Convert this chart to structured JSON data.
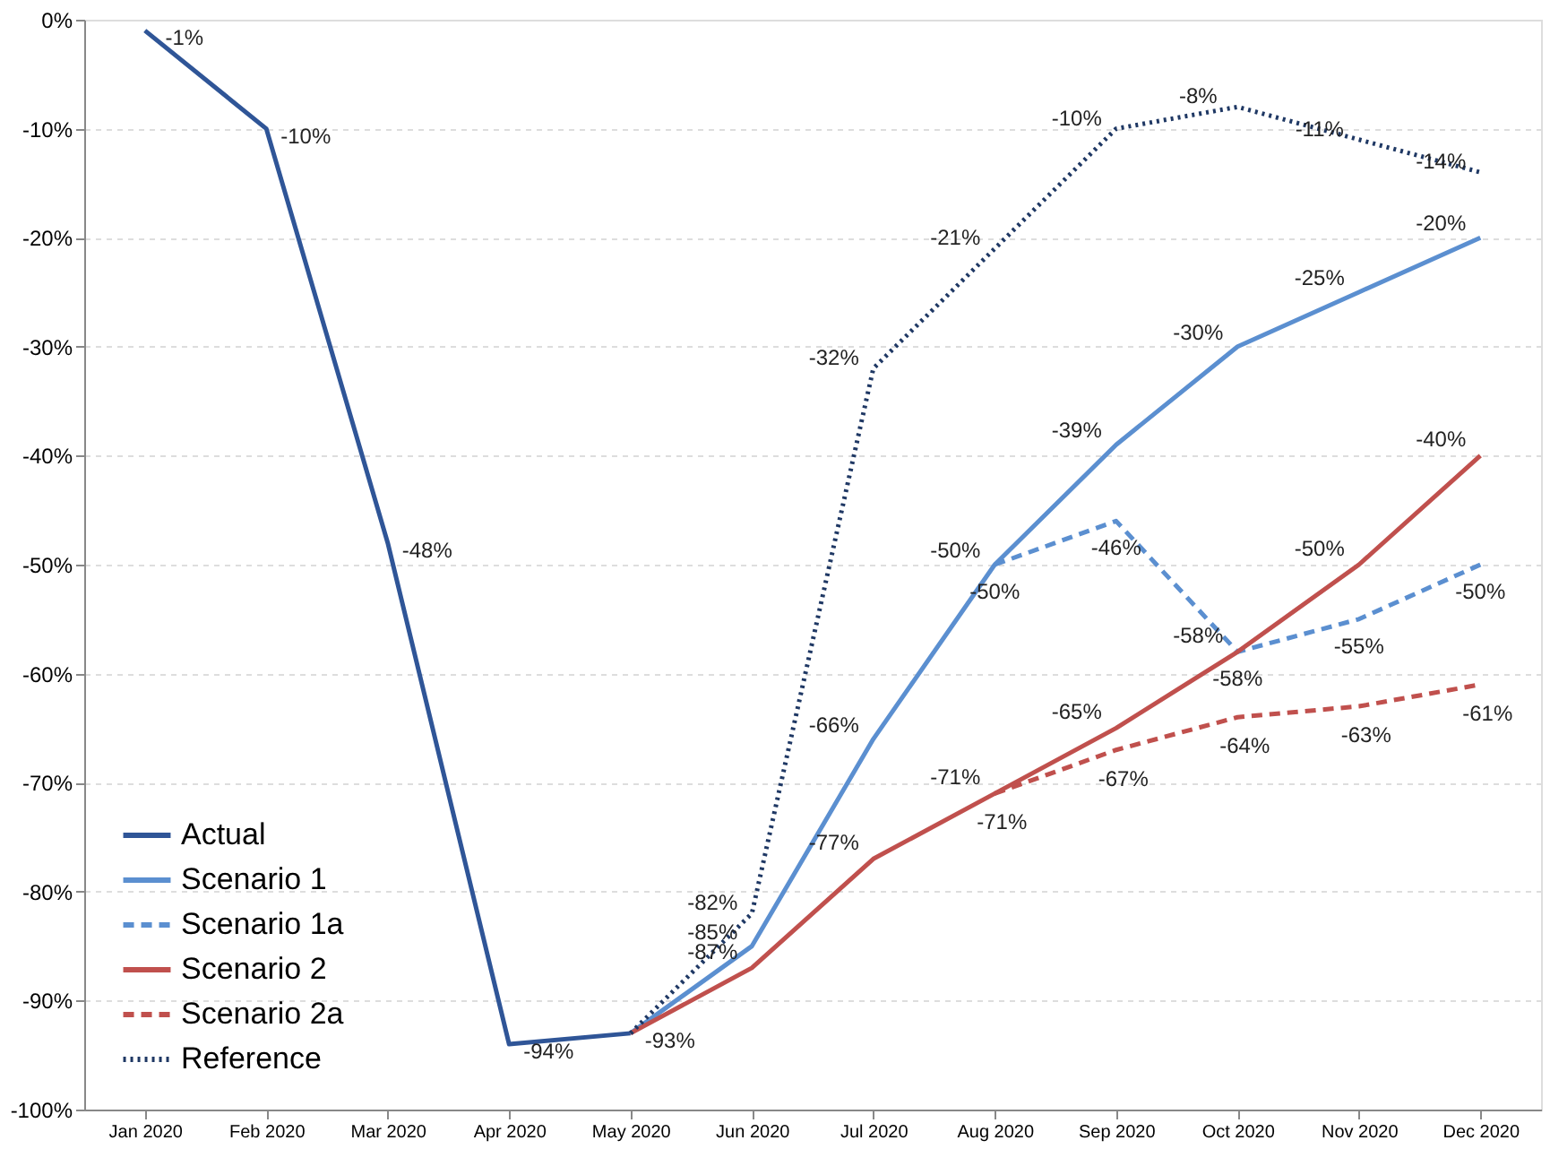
{
  "chart_data": {
    "type": "line",
    "categories": [
      "Jan 2020",
      "Feb 2020",
      "Mar 2020",
      "Apr 2020",
      "May 2020",
      "Jun 2020",
      "Jul 2020",
      "Aug 2020",
      "Sep 2020",
      "Oct 2020",
      "Nov 2020",
      "Dec 2020"
    ],
    "series": [
      {
        "name": "Actual",
        "color": "#2f5597",
        "line_style": "solid",
        "values": [
          -1,
          -10,
          -48,
          -94,
          -93,
          null,
          null,
          null,
          null,
          null,
          null,
          null
        ],
        "value_labels": [
          "-1%",
          "-10%",
          "-48%",
          "-94%",
          "-93%",
          null,
          null,
          null,
          null,
          null,
          null,
          null
        ]
      },
      {
        "name": "Scenario 1",
        "color": "#5b8fd0",
        "line_style": "solid",
        "values": [
          null,
          null,
          null,
          null,
          -93,
          -85,
          -66,
          -50,
          -39,
          -30,
          -25,
          -20
        ],
        "value_labels": [
          null,
          null,
          null,
          null,
          null,
          "-85%",
          "-66%",
          "-50%",
          "-39%",
          "-30%",
          "-25%",
          "-20%"
        ]
      },
      {
        "name": "Scenario 1a",
        "color": "#5b8fd0",
        "line_style": "dashed",
        "values": [
          null,
          null,
          null,
          null,
          null,
          null,
          null,
          -50,
          -46,
          -58,
          -55,
          -50
        ],
        "value_labels": [
          null,
          null,
          null,
          null,
          null,
          null,
          null,
          "-50%",
          "-46%",
          "-58%",
          "-55%",
          "-50%"
        ]
      },
      {
        "name": "Scenario 2",
        "color": "#c0504d",
        "line_style": "solid",
        "values": [
          null,
          null,
          null,
          null,
          -93,
          -87,
          -77,
          -71,
          -65,
          -58,
          -50,
          -40
        ],
        "value_labels": [
          null,
          null,
          null,
          null,
          null,
          "-87%",
          "-77%",
          "-71%",
          "-65%",
          "-58%",
          "-50%",
          "-40%"
        ]
      },
      {
        "name": "Scenario 2a",
        "color": "#c0504d",
        "line_style": "dashed",
        "values": [
          null,
          null,
          null,
          null,
          null,
          null,
          null,
          -71,
          -67,
          -64,
          -63,
          -61
        ],
        "value_labels": [
          null,
          null,
          null,
          null,
          null,
          null,
          null,
          "-71%",
          "-67%",
          "-64%",
          "-63%",
          "-61%"
        ]
      },
      {
        "name": "Reference",
        "color": "#1f3864",
        "line_style": "dotted",
        "values": [
          null,
          null,
          null,
          null,
          -93,
          -82,
          -32,
          -21,
          -10,
          -8,
          -11,
          -14
        ],
        "value_labels": [
          null,
          null,
          null,
          null,
          null,
          "-82%",
          "-32%",
          "-21%",
          "-10%",
          "-8%",
          "-11%",
          "-14%"
        ]
      }
    ],
    "ylim": [
      -100,
      0
    ],
    "yticks": [
      {
        "value": 0,
        "label": "0%"
      },
      {
        "value": -10,
        "label": "-10%"
      },
      {
        "value": -20,
        "label": "-20%"
      },
      {
        "value": -30,
        "label": "-30%"
      },
      {
        "value": -40,
        "label": "-40%"
      },
      {
        "value": -50,
        "label": "-50%"
      },
      {
        "value": -60,
        "label": "-60%"
      },
      {
        "value": -70,
        "label": "-70%"
      },
      {
        "value": -80,
        "label": "-80%"
      },
      {
        "value": -90,
        "label": "-90%"
      },
      {
        "value": -100,
        "label": "-100%"
      }
    ],
    "grid": "y",
    "legend": "bottom left",
    "marker": "none"
  }
}
